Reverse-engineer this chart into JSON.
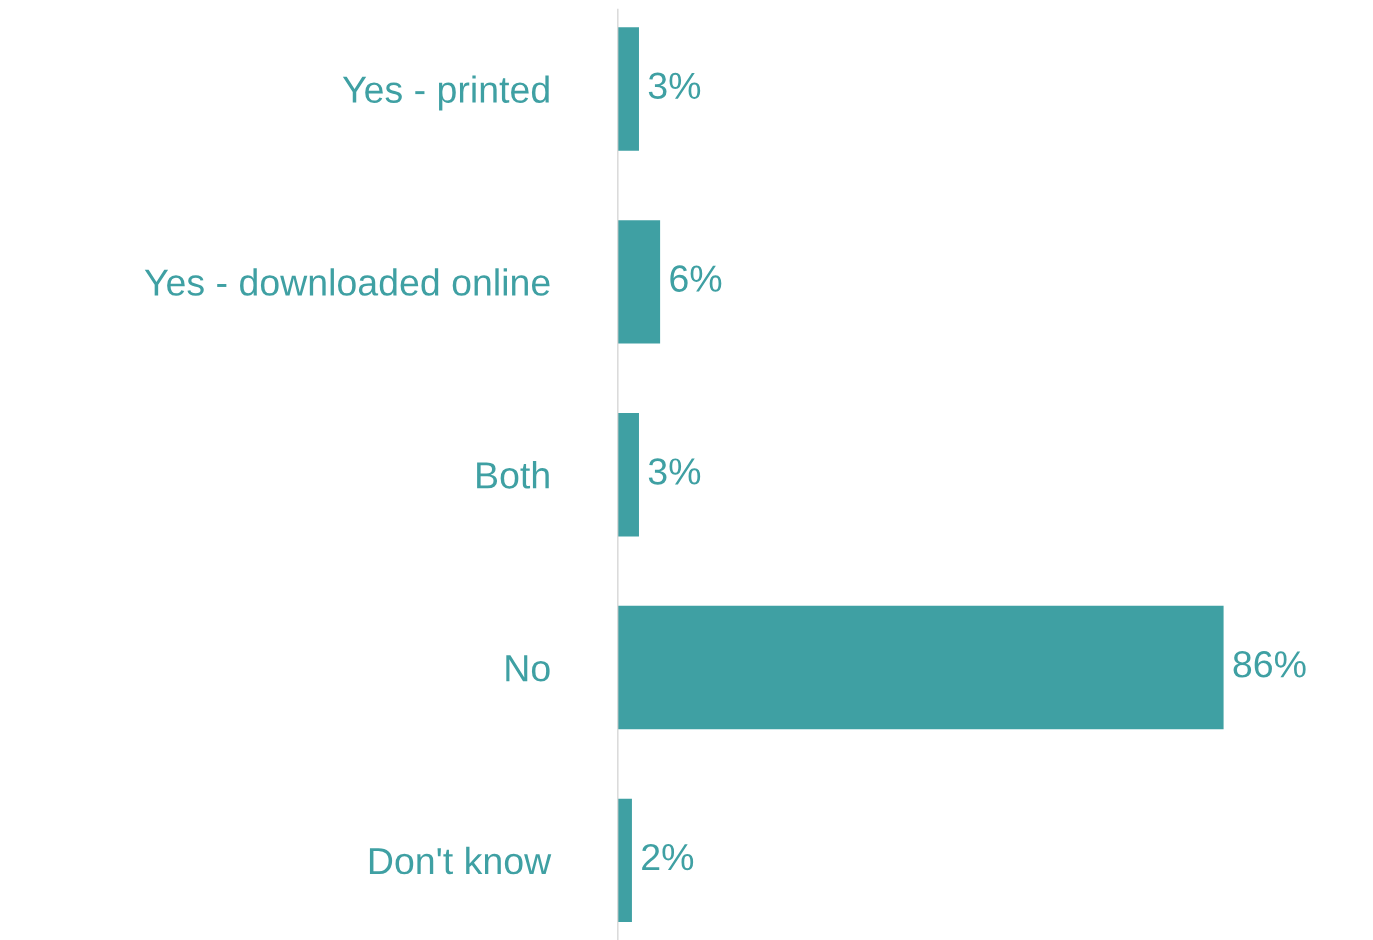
{
  "chart_data": {
    "type": "bar",
    "orientation": "horizontal",
    "categories": [
      "Yes - printed",
      "Yes - downloaded online",
      "Both",
      "No",
      "Don't know"
    ],
    "values": [
      3,
      6,
      3,
      86,
      2
    ],
    "value_labels": [
      "3%",
      "6%",
      "3%",
      "86%",
      "2%"
    ],
    "color": "#3fa0a3",
    "grid": false,
    "legend": false
  }
}
